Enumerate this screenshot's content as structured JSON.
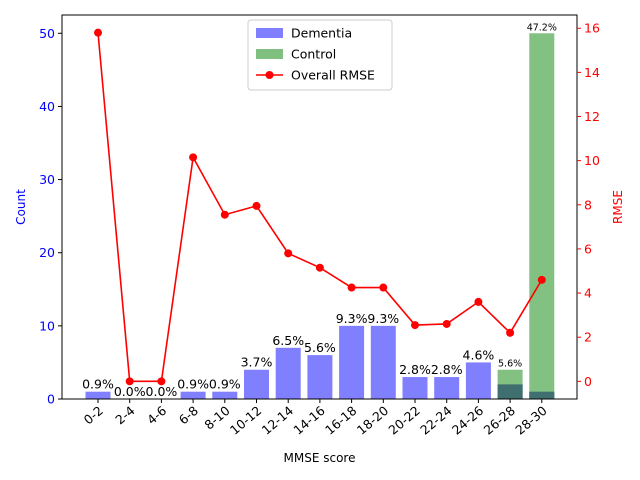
{
  "chart_data": {
    "type": "bar",
    "title": "",
    "xlabel": "MMSE score",
    "ylabel_left": "Count",
    "ylabel_right": "RMSE",
    "categories": [
      "0-2",
      "2-4",
      "4-6",
      "6-8",
      "8-10",
      "10-12",
      "12-14",
      "14-16",
      "16-18",
      "18-20",
      "20-22",
      "22-24",
      "24-26",
      "26-28",
      "28-30"
    ],
    "ylim_left": [
      0,
      52.5
    ],
    "yticks_left": [
      0,
      10,
      20,
      30,
      40,
      50
    ],
    "ylim_right": [
      -0.8,
      16.6
    ],
    "yticks_right": [
      0,
      2,
      4,
      6,
      8,
      10,
      12,
      14,
      16
    ],
    "grid": false,
    "legend_position": "top-center",
    "series": [
      {
        "name": "Dementia",
        "kind": "bar",
        "color": "#8080ff",
        "values": [
          1,
          0,
          0,
          1,
          1,
          4,
          7,
          6,
          10,
          10,
          3,
          3,
          5,
          2,
          1
        ]
      },
      {
        "name": "Control",
        "kind": "bar",
        "color": "#7fbf7f",
        "values": [
          0,
          0,
          0,
          0,
          0,
          0,
          0,
          0,
          0,
          0,
          0,
          0,
          0,
          4,
          50
        ]
      },
      {
        "name": "Overall RMSE",
        "kind": "line",
        "axis": "right",
        "color": "#ff0000",
        "values": [
          15.8,
          0.0,
          0.0,
          10.15,
          7.55,
          7.95,
          5.8,
          5.15,
          4.25,
          4.25,
          2.55,
          2.6,
          3.6,
          2.2,
          4.6
        ]
      }
    ],
    "bar_labels": [
      {
        "text": "0.9%",
        "index": 0,
        "size": "normal"
      },
      {
        "text": "0.0%",
        "index": 1,
        "size": "normal"
      },
      {
        "text": "0.0%",
        "index": 2,
        "size": "normal"
      },
      {
        "text": "0.9%",
        "index": 3,
        "size": "normal"
      },
      {
        "text": "0.9%",
        "index": 4,
        "size": "normal"
      },
      {
        "text": "3.7%",
        "index": 5,
        "size": "normal"
      },
      {
        "text": "6.5%",
        "index": 6,
        "size": "normal"
      },
      {
        "text": "5.6%",
        "index": 7,
        "size": "normal"
      },
      {
        "text": "9.3%",
        "index": 8,
        "size": "normal"
      },
      {
        "text": "9.3%",
        "index": 9,
        "size": "normal"
      },
      {
        "text": "2.8%",
        "index": 10,
        "size": "normal"
      },
      {
        "text": "2.8%",
        "index": 11,
        "size": "normal"
      },
      {
        "text": "4.6%",
        "index": 12,
        "size": "normal"
      },
      {
        "text": "5.6%",
        "index": 13,
        "size": "small"
      },
      {
        "text": "47.2%",
        "index": 14,
        "size": "small"
      }
    ],
    "axis_colors": {
      "left": "#0000ff",
      "right": "#ff0000"
    }
  }
}
